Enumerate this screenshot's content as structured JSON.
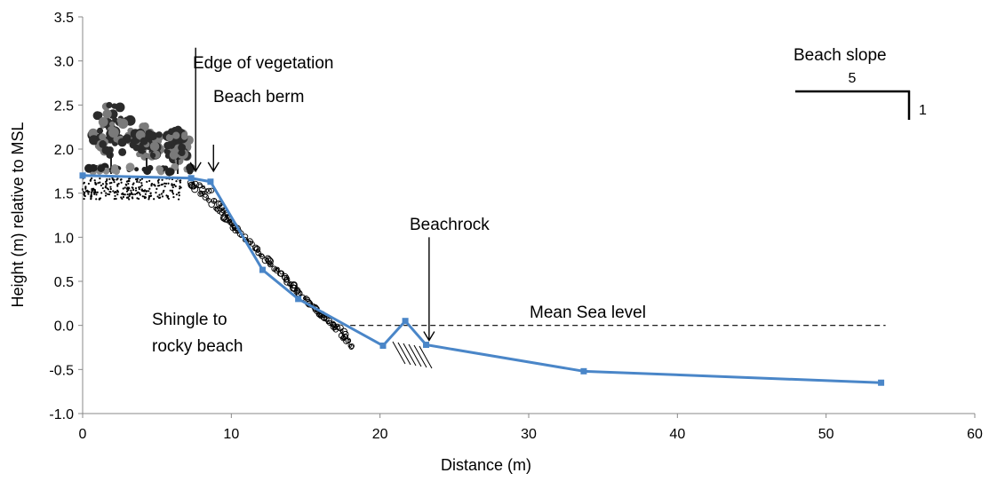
{
  "chart_data": {
    "type": "line",
    "title": "",
    "xlabel": "Distance (m)",
    "ylabel": "Height (m) relative to MSL",
    "xlim": [
      0,
      60
    ],
    "ylim": [
      -1.0,
      3.5
    ],
    "xticks": [
      0,
      10,
      20,
      30,
      40,
      50,
      60
    ],
    "xtick_labels": [
      "0",
      "10",
      "20",
      "30",
      "40",
      "50",
      "60"
    ],
    "yticks": [
      -1.0,
      -0.5,
      0.0,
      0.5,
      1.0,
      1.5,
      2.0,
      2.5,
      3.0,
      3.5
    ],
    "ytick_labels": [
      "-1.0",
      "-0.5",
      "0.0",
      "0.5",
      "1.0",
      "1.5",
      "2.0",
      "2.5",
      "3.0",
      "3.5"
    ],
    "grid": false,
    "legend": "none",
    "series": [
      {
        "color": "#4a86c8",
        "x": [
          0,
          7.3,
          8.6,
          12.1,
          14.5,
          20.2,
          21.7,
          23.1,
          33.7,
          53.7
        ],
        "y": [
          1.7,
          1.67,
          1.63,
          0.63,
          0.3,
          -0.23,
          0.05,
          -0.22,
          -0.52,
          -0.65
        ]
      }
    ],
    "reference_lines": [
      {
        "label": "Mean Sea level",
        "y": 0.0,
        "x_range": [
          18,
          54
        ],
        "style": "dashed"
      }
    ],
    "annotations": {
      "edge_of_vegetation": {
        "text": "Edge of vegetation",
        "arrow_x": 7.6,
        "arrow_y_from": 3.15,
        "arrow_y_to": 1.75
      },
      "beach_berm": {
        "text": "Beach berm",
        "arrow_x": 8.8,
        "arrow_y_from": 2.05,
        "arrow_y_to": 1.75
      },
      "beachrock": {
        "text": "Beachrock",
        "arrow_x": 23.3,
        "arrow_y_from": 1.0,
        "arrow_y_to": -0.17
      },
      "mean_sea_level": {
        "text": "Mean Sea level"
      },
      "shingle": {
        "line1": "Shingle to",
        "line2": "rocky beach"
      },
      "beach_slope": {
        "title": "Beach slope",
        "run": "5",
        "rise": "1"
      }
    }
  }
}
